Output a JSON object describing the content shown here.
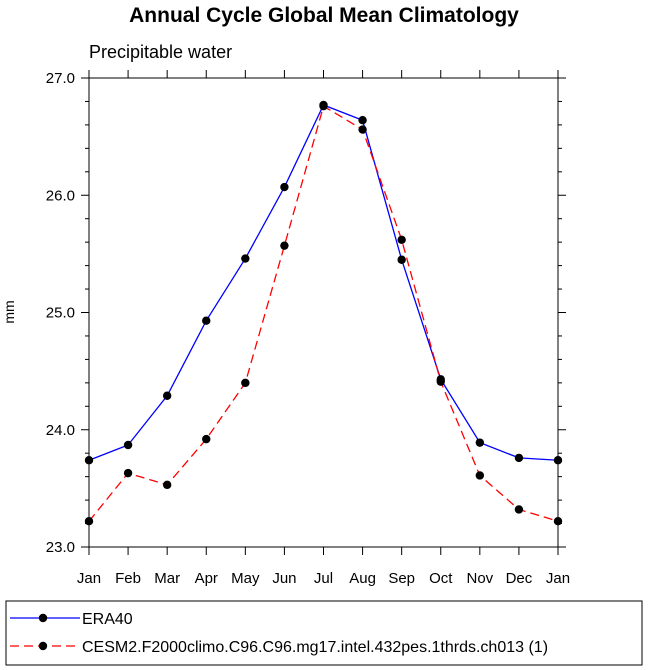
{
  "chart_data": {
    "type": "line",
    "title": "Annual Cycle Global Mean Climatology",
    "subtitle": "Precipitable water",
    "xlabel": "",
    "ylabel": "mm",
    "categories": [
      "Jan",
      "Feb",
      "Mar",
      "Apr",
      "May",
      "Jun",
      "Jul",
      "Aug",
      "Sep",
      "Oct",
      "Nov",
      "Dec",
      "Jan"
    ],
    "ylim": [
      23.0,
      27.0
    ],
    "yticks": [
      "23.0",
      "24.0",
      "25.0",
      "26.0",
      "27.0"
    ],
    "legend_position": "bottom",
    "grid": false,
    "series": [
      {
        "name": "ERA40",
        "color": "#0000ff",
        "line_style": "solid",
        "marker_color": "#000000",
        "values": [
          23.74,
          23.87,
          24.29,
          24.93,
          25.46,
          26.07,
          26.77,
          26.64,
          25.45,
          24.43,
          23.89,
          23.76,
          23.74
        ]
      },
      {
        "name": "CESM2.F2000climo.C96.C96.mg17.intel.432pes.1thrds.ch013 (1)",
        "color": "#ff0000",
        "line_style": "dashed",
        "marker_color": "#000000",
        "values": [
          23.22,
          23.63,
          23.53,
          23.92,
          24.4,
          25.57,
          26.76,
          26.56,
          25.62,
          24.41,
          23.61,
          23.32,
          23.22
        ]
      }
    ]
  }
}
